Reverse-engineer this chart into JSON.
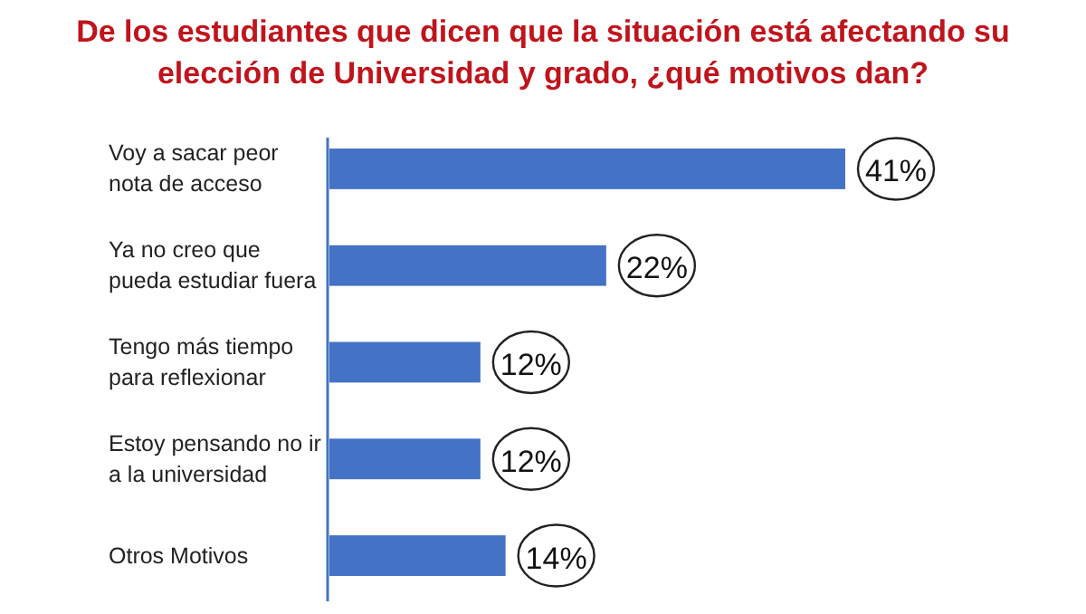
{
  "chart_data": {
    "type": "bar",
    "orientation": "horizontal",
    "title": "De los estudiantes que dicen que la situación está afectando su elección de Universidad y grado, ¿qué motivos dan?",
    "categories": [
      "Voy a sacar peor nota de acceso",
      "Ya no creo que pueda estudiar fuera",
      "Tengo más tiempo para reflexionar",
      "Estoy pensando no ir a la universidad",
      "Otros Motivos"
    ],
    "values": [
      41,
      22,
      12,
      12,
      14
    ],
    "value_labels": [
      "41%",
      "22%",
      "12%",
      "12%",
      "14%"
    ],
    "color": "#4472c4"
  }
}
